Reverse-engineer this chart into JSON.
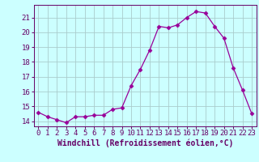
{
  "x": [
    0,
    1,
    2,
    3,
    4,
    5,
    6,
    7,
    8,
    9,
    10,
    11,
    12,
    13,
    14,
    15,
    16,
    17,
    18,
    19,
    20,
    21,
    22,
    23
  ],
  "y": [
    14.6,
    14.3,
    14.1,
    13.9,
    14.3,
    14.3,
    14.4,
    14.4,
    14.8,
    14.9,
    16.4,
    17.5,
    18.8,
    20.4,
    20.3,
    20.5,
    21.0,
    21.4,
    21.3,
    20.4,
    19.6,
    17.6,
    16.1,
    14.5
  ],
  "line_color": "#990099",
  "marker": "D",
  "marker_size": 2.5,
  "bg_color": "#ccffff",
  "grid_color": "#aacccc",
  "tick_color": "#660066",
  "xlabel": "Windchill (Refroidissement éolien,°C)",
  "xlabel_fontsize": 7,
  "ylabel_ticks": [
    14,
    15,
    16,
    17,
    18,
    19,
    20,
    21
  ],
  "xlim": [
    -0.5,
    23.5
  ],
  "ylim": [
    13.65,
    21.85
  ],
  "tick_fontsize": 6.5
}
